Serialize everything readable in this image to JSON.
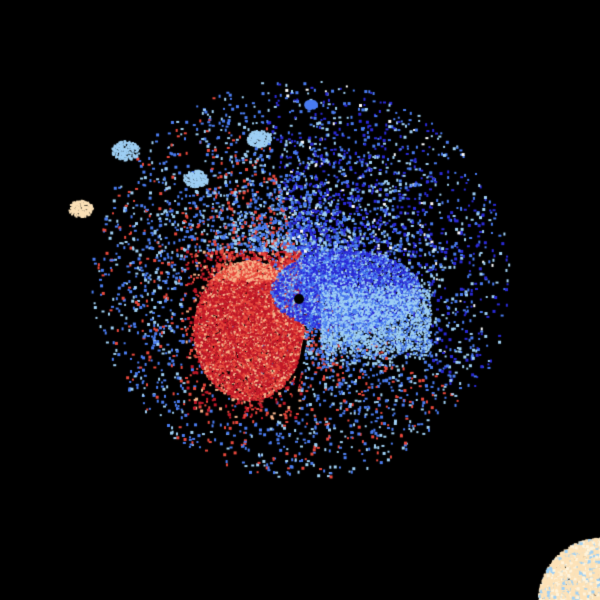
{
  "image": {
    "kind": "doppler-radar-velocity-display",
    "background": "#000000",
    "colors": {
      "inbound_strong": "#2a2ad8",
      "inbound_mid": "#4a7cf0",
      "inbound_light": "#9fd0f5",
      "outbound_strong": "#c01828",
      "outbound_mid": "#e8483c",
      "outbound_light": "#f8b48c",
      "outbound_pale": "#fde2b8",
      "radar_site": "#000000"
    }
  }
}
